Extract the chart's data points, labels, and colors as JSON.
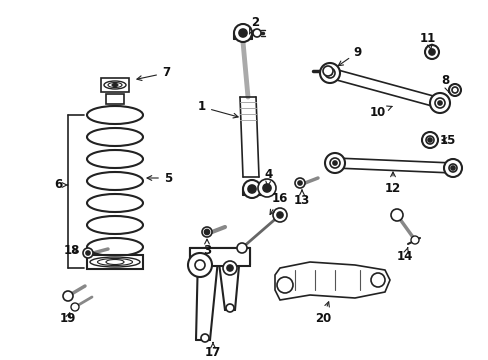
{
  "bg_color": "#ffffff",
  "lc": "#222222",
  "tc": "#111111",
  "gc": "#888888",
  "figsize": [
    4.89,
    3.6
  ],
  "dpi": 100
}
